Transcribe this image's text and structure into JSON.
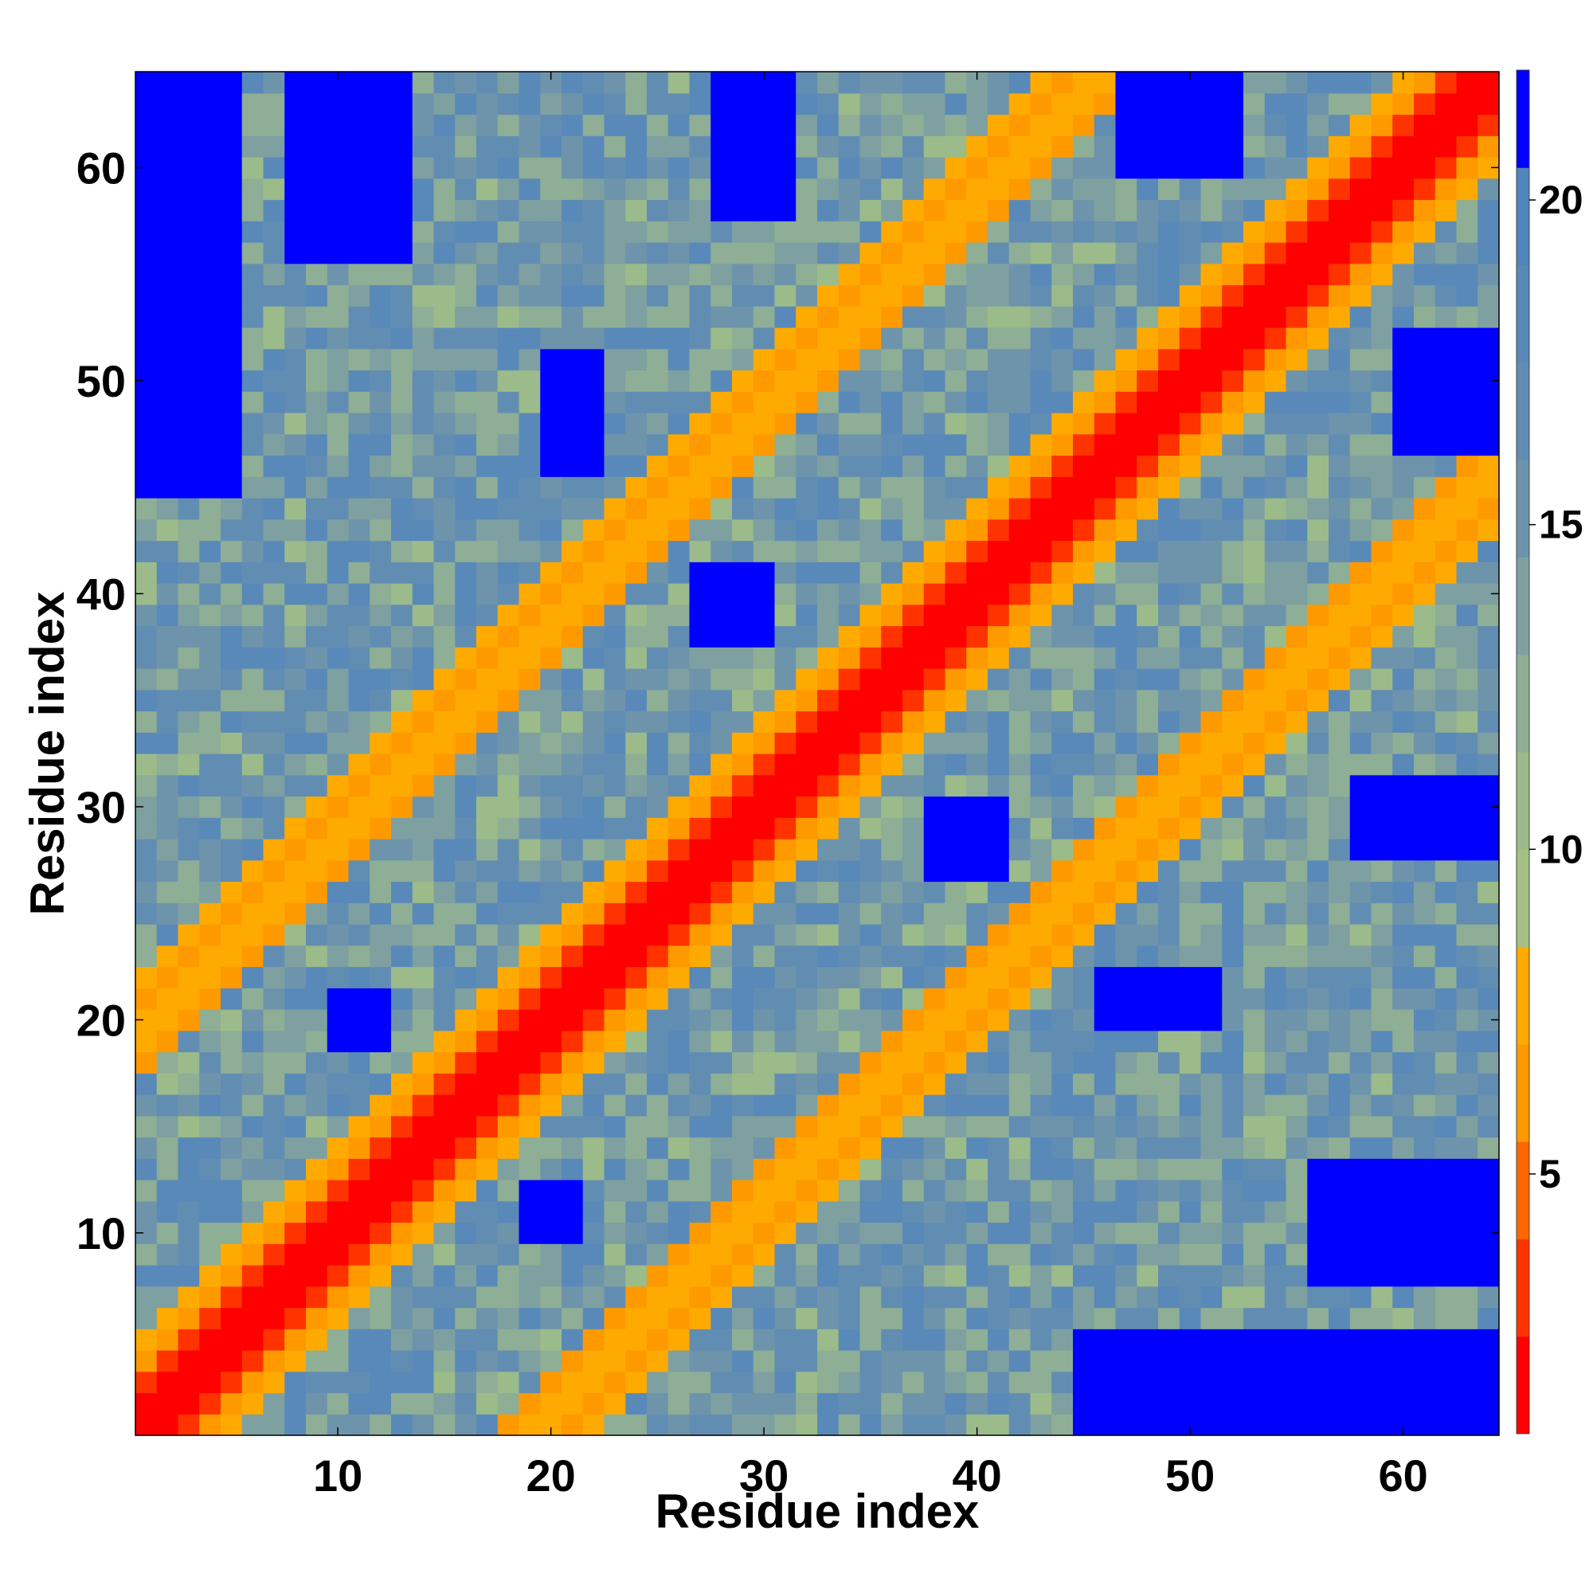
{
  "chart_data": {
    "type": "heatmap",
    "title": "",
    "xlabel": "Residue index",
    "ylabel": "Residue index",
    "n": 64,
    "xlim": [
      0.5,
      64.5
    ],
    "ylim": [
      0.5,
      64.5
    ],
    "x_ticks": [
      10,
      20,
      30,
      40,
      50,
      60
    ],
    "y_ticks": [
      10,
      20,
      30,
      40,
      50,
      60
    ],
    "colorbar": {
      "range": [
        1,
        22
      ],
      "ticks": [
        5,
        10,
        15,
        20
      ],
      "bins": [
        {
          "max": 2.5,
          "color": "#ff0000"
        },
        {
          "max": 4.0,
          "color": "#ff3300"
        },
        {
          "max": 5.5,
          "color": "#ff6600"
        },
        {
          "max": 7.0,
          "color": "#ff9900"
        },
        {
          "max": 8.5,
          "color": "#ffaa00"
        },
        {
          "max": 10.0,
          "color": "#a5bf84"
        },
        {
          "max": 11.5,
          "color": "#9cbb8a"
        },
        {
          "max": 13.0,
          "color": "#8eae95"
        },
        {
          "max": 14.5,
          "color": "#7fa0a0"
        },
        {
          "max": 16.0,
          "color": "#6e94ab"
        },
        {
          "max": 17.5,
          "color": "#628db3"
        },
        {
          "max": 19.0,
          "color": "#5989b8"
        },
        {
          "max": 20.5,
          "color": "#5185bd"
        },
        {
          "max": 22.0,
          "color": "#0000ff"
        }
      ]
    },
    "contact_bands": [
      {
        "offset": 0,
        "value": 1.5
      },
      {
        "offset": 1,
        "value": 2.2
      },
      {
        "offset": 2,
        "value": 3.8
      },
      {
        "offset": 3,
        "value": 5.6
      },
      {
        "offset": 4,
        "value": 7.8
      },
      {
        "offset": 17,
        "value": 6.2
      },
      {
        "offset": 18,
        "value": 7.6
      },
      {
        "offset": 19,
        "value": 7.2
      },
      {
        "offset": 20,
        "value": 6.8
      },
      {
        "offset": 21,
        "value": 7.9
      }
    ],
    "far_blocks": [
      {
        "i": [
          1,
          5
        ],
        "j": [
          45,
          64
        ],
        "value": 21.0
      },
      {
        "i": [
          8,
          13
        ],
        "j": [
          56,
          64
        ],
        "value": 21.0
      },
      {
        "i": [
          47,
          52
        ],
        "j": [
          60,
          64
        ],
        "value": 21.0
      },
      {
        "i": [
          20,
          22
        ],
        "j": [
          46,
          51
        ],
        "value": 21.0
      },
      {
        "i": [
          28,
          31
        ],
        "j": [
          58,
          64
        ],
        "value": 21.0
      },
      {
        "i": [
          10,
          12
        ],
        "j": [
          19,
          21
        ],
        "value": 21.0
      },
      {
        "i": [
          27,
          30
        ],
        "j": [
          38,
          41
        ],
        "value": 21.0
      }
    ]
  }
}
